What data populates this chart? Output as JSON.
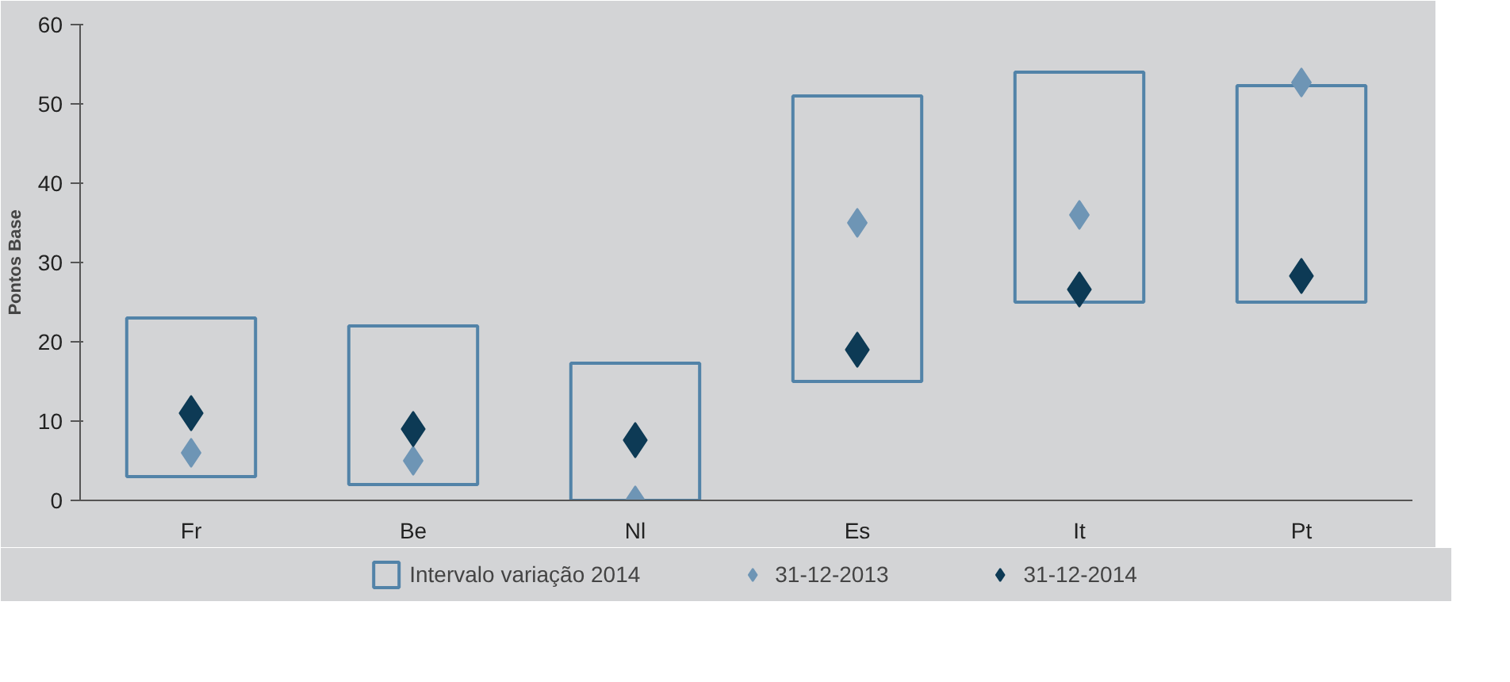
{
  "chart_data": {
    "type": "bar",
    "ylabel": "Pontos Base",
    "categories": [
      "Fr",
      "Be",
      "Nl",
      "Es",
      "It",
      "Pt"
    ],
    "ylim": [
      0,
      60
    ],
    "yticks": [
      0,
      10,
      20,
      30,
      40,
      50,
      60
    ],
    "grid": false,
    "legend": "bottom",
    "series": [
      {
        "name": "Intervalo variação 2014",
        "color": "#5283a8",
        "base": [
          3,
          2,
          0,
          15,
          25,
          25
        ],
        "values": [
          20,
          20,
          17.3,
          36,
          29,
          27.3
        ]
      },
      {
        "name": "31-12-2013",
        "type": "scatter",
        "marker": "diamond",
        "color": "#6e95b5",
        "values": [
          6,
          5,
          0,
          35,
          36,
          52.7
        ]
      },
      {
        "name": "31-12-2014",
        "type": "scatter",
        "marker": "diamond",
        "color": "#0d3a55",
        "values": [
          11,
          9,
          7.6,
          19,
          26.6,
          28.3
        ]
      }
    ]
  }
}
